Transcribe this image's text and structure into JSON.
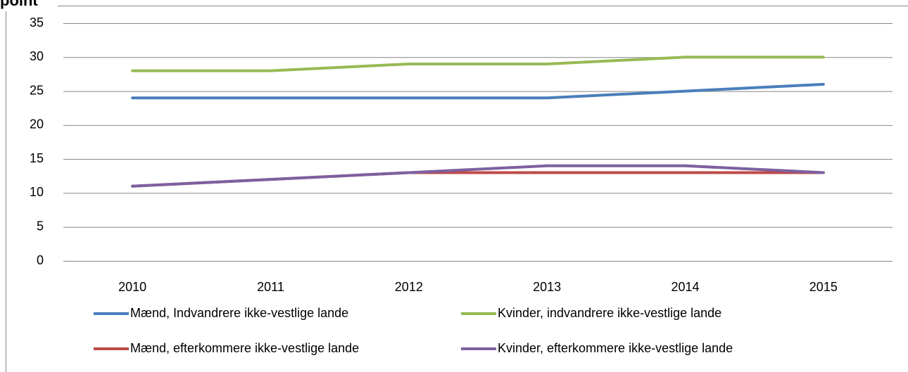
{
  "chart_data": {
    "type": "line",
    "title": "point",
    "categories": [
      "2010",
      "2011",
      "2012",
      "2013",
      "2014",
      "2015"
    ],
    "series": [
      {
        "name": "Mænd, Indvandrere ikke-vestlige lande",
        "color": "#4a7ebb",
        "values": [
          24,
          24,
          24,
          24,
          25,
          26
        ]
      },
      {
        "name": "Kvinder, indvandrere ikke-vestlige lande",
        "color": "#98b954",
        "values": [
          28,
          28,
          29,
          29,
          30,
          30
        ]
      },
      {
        "name": "Mænd, efterkommere ikke-vestlige lande",
        "color": "#be4b48",
        "values": [
          11,
          12,
          13,
          13,
          13,
          13
        ]
      },
      {
        "name": "Kvinder, efterkommere ikke-vestlige lande",
        "color": "#7d60a0",
        "values": [
          11,
          12,
          13,
          14,
          14,
          13
        ]
      }
    ],
    "ylim": [
      0,
      35
    ],
    "yticks": [
      0,
      5,
      10,
      15,
      20,
      25,
      30,
      35
    ],
    "grid": true,
    "legend": "bottom"
  }
}
